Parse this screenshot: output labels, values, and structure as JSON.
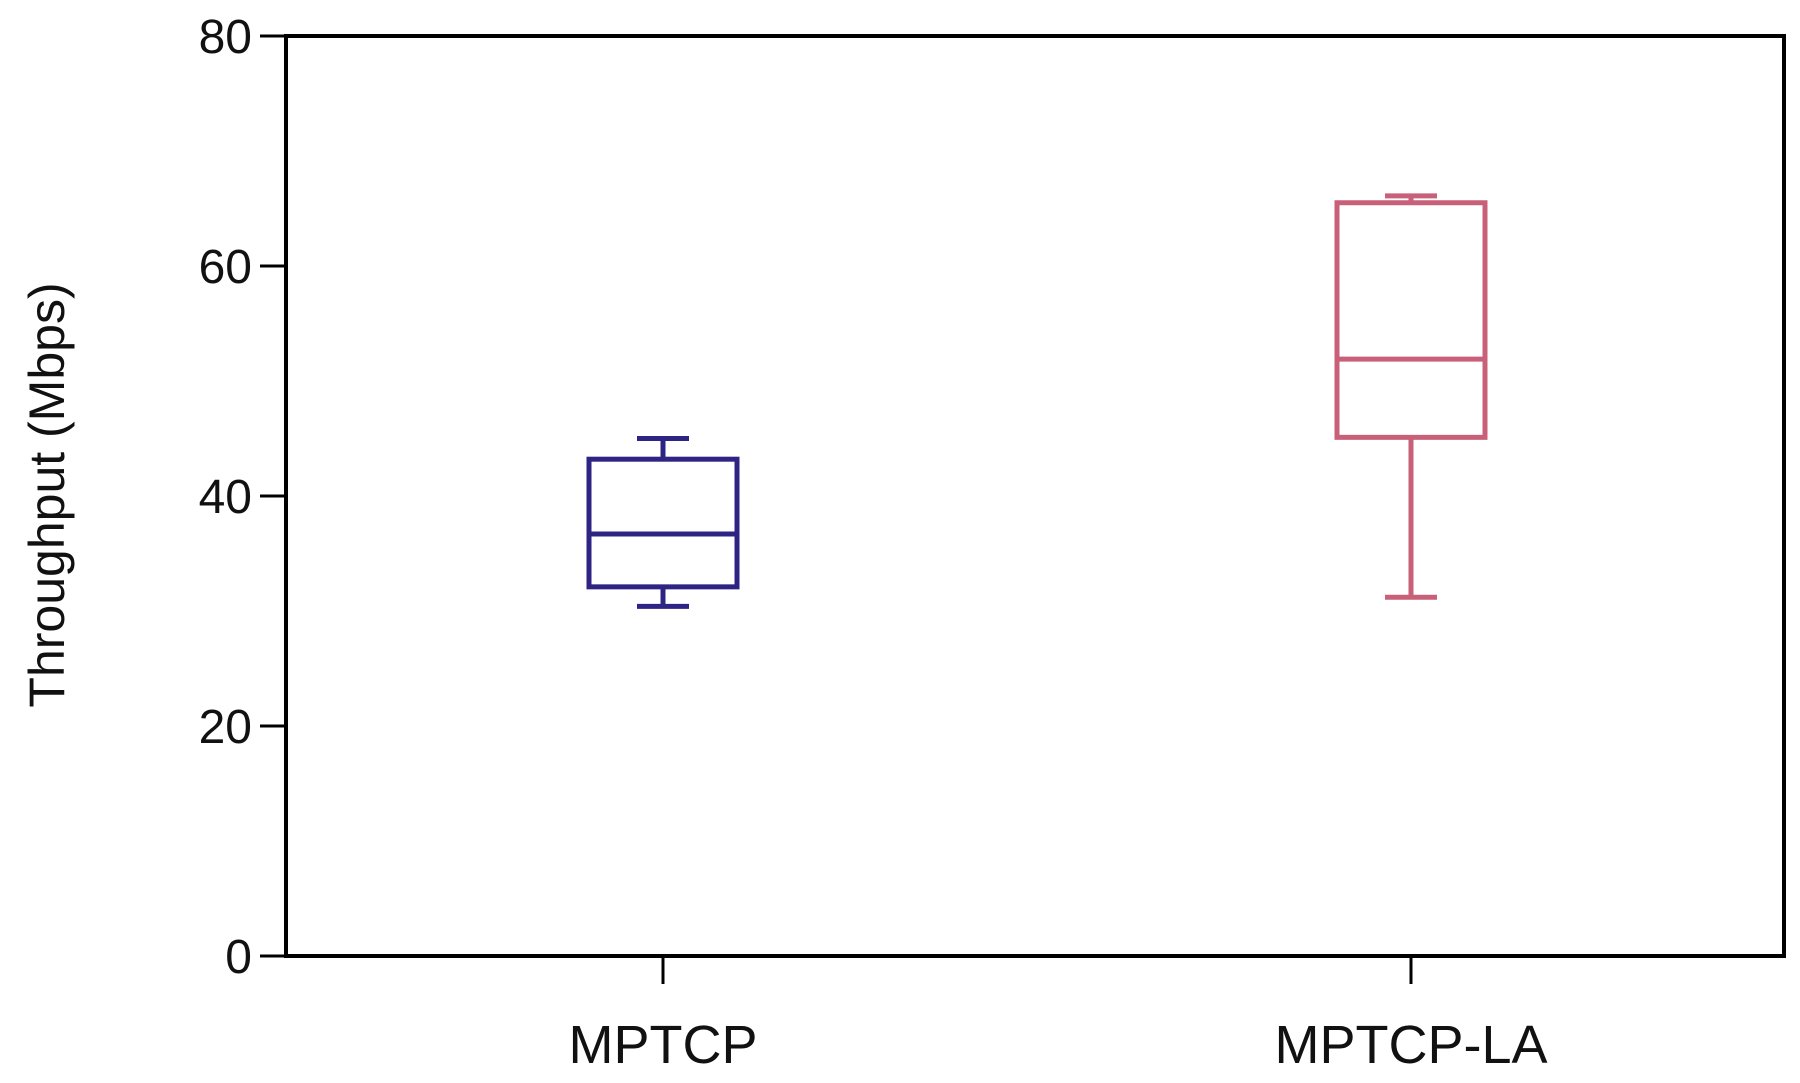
{
  "chart_data": {
    "type": "boxplot",
    "title": "",
    "xlabel": "",
    "ylabel": "Throughput (Mbps)",
    "ylim": [
      0,
      80
    ],
    "yticks": [
      0,
      20,
      40,
      60,
      80
    ],
    "grid": false,
    "legend": "none",
    "categories": [
      "MPTCP",
      "MPTCP-LA"
    ],
    "boxes": [
      {
        "category": "MPTCP",
        "whisker_low": 30.4,
        "q1": 32.1,
        "median": 36.7,
        "q3": 43.2,
        "whisker_high": 45.0,
        "color": "#2e2483"
      },
      {
        "category": "MPTCP-LA",
        "whisker_low": 31.2,
        "q1": 45.1,
        "median": 51.9,
        "q3": 65.5,
        "whisker_high": 66.1,
        "color": "#c8607a"
      }
    ]
  }
}
